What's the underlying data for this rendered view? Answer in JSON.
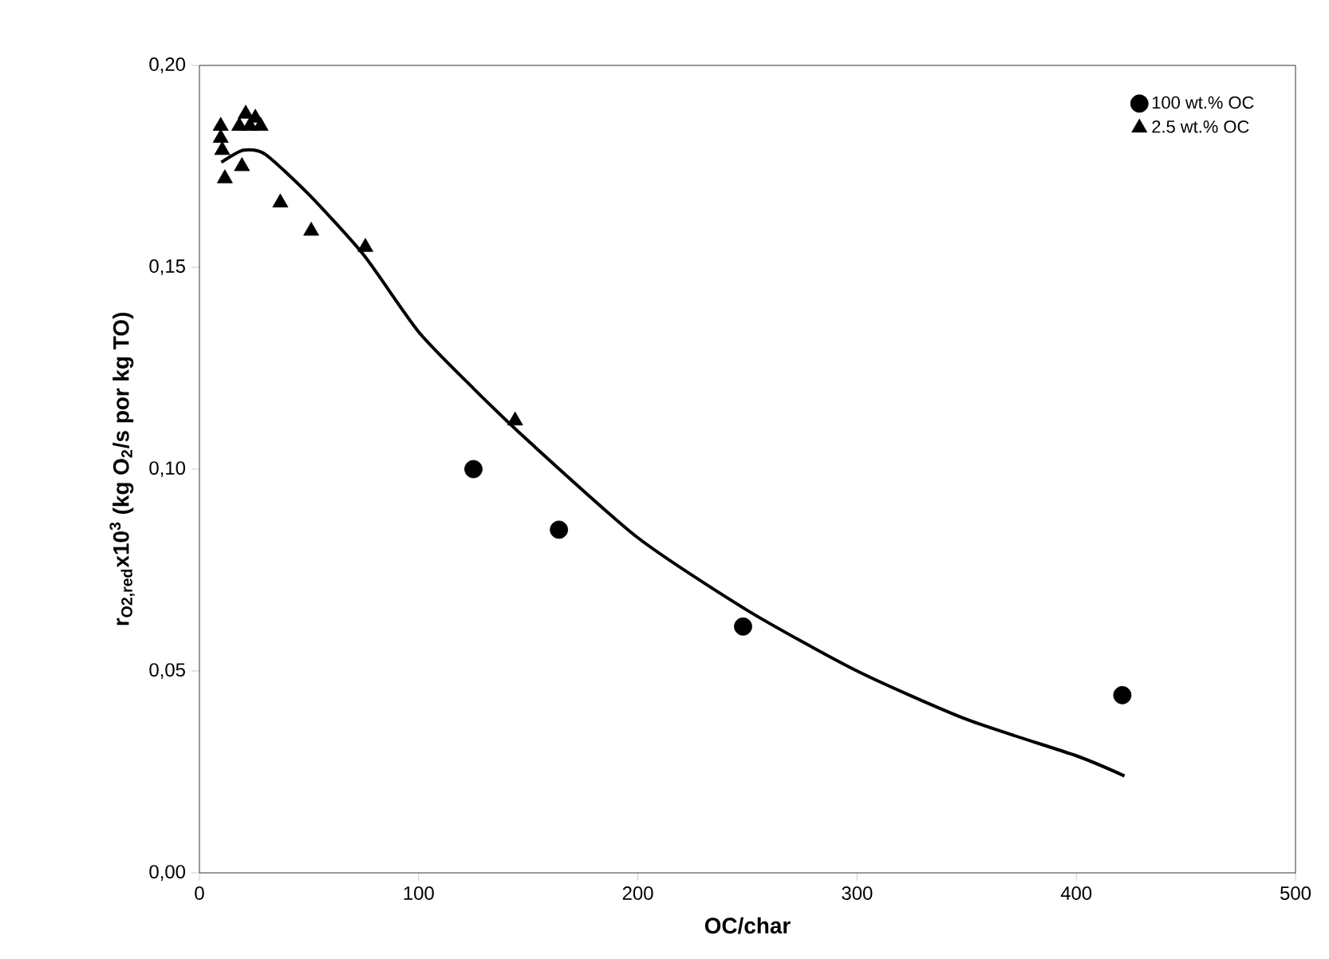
{
  "chart_data": {
    "type": "scatter",
    "xlabel": "OC/char",
    "ylabel": "r$_{O2,red}$x10$^{3}$ (kg O$_{2}$/s por kg TO)",
    "xlim": [
      0,
      500
    ],
    "xticks": [
      0,
      100,
      200,
      300,
      400,
      500
    ],
    "ylim": [
      0,
      0.2
    ],
    "yticks": [
      {
        "value": 0,
        "label": "0,00"
      },
      {
        "value": 0.05,
        "label": "0,05"
      },
      {
        "value": 0.1,
        "label": "0,10"
      },
      {
        "value": 0.15,
        "label": "0,15"
      },
      {
        "value": 0.2,
        "label": "0,20"
      }
    ],
    "grid": false,
    "legend": "top right",
    "series": [
      {
        "name": "100 wt.% OC",
        "marker": "circle",
        "color": "#000000",
        "x": [
          125,
          164,
          248,
          421
        ],
        "values": [
          0.1,
          0.085,
          0.061,
          0.044
        ]
      },
      {
        "name": "2.5 wt.% OC",
        "marker": "triangle",
        "color": "#000000",
        "x": [
          9.7,
          9.7,
          10.4,
          11.6,
          19.4,
          21.1,
          25.5,
          27.9,
          23,
          18.2,
          36.9,
          51,
          75.7,
          144
        ],
        "values": [
          0.185,
          0.182,
          0.179,
          0.172,
          0.175,
          0.188,
          0.187,
          0.185,
          0.185,
          0.185,
          0.166,
          0.159,
          0.155,
          0.112
        ]
      },
      {
        "type": "line",
        "marker": "none",
        "color": "#000000",
        "x": [
          10,
          20,
          30,
          50,
          75,
          100,
          125,
          150,
          200,
          250,
          300,
          350,
          400,
          422
        ],
        "values": [
          0.176,
          0.179,
          0.178,
          0.168,
          0.153,
          0.134,
          0.12,
          0.107,
          0.083,
          0.065,
          0.05,
          0.038,
          0.029,
          0.024
        ]
      }
    ]
  }
}
